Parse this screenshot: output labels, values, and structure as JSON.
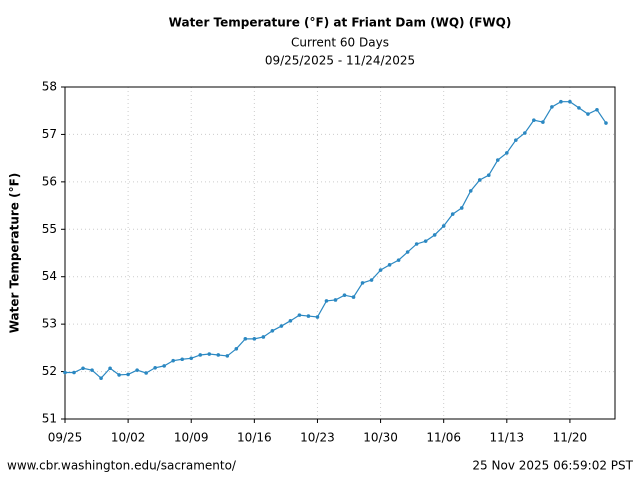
{
  "chart_data": {
    "type": "line",
    "title": "Water Temperature (°F) at Friant Dam (WQ) (FWQ)",
    "subtitle": "Current 60 Days",
    "date_range": "09/25/2025 - 11/24/2025",
    "y_label": "Water Temperature (°F)",
    "source": "www.cbr.washington.edu/sacramento/",
    "timestamp": "25 Nov 2025 06:59:02 PST",
    "x": [
      0,
      1,
      2,
      3,
      4,
      5,
      6,
      7,
      8,
      9,
      10,
      11,
      12,
      13,
      14,
      15,
      16,
      17,
      18,
      19,
      20,
      21,
      22,
      23,
      24,
      25,
      26,
      27,
      28,
      29,
      30,
      31,
      32,
      33,
      34,
      35,
      36,
      37,
      38,
      39,
      40,
      41,
      42,
      43,
      44,
      45,
      46,
      47,
      48,
      49,
      50,
      51,
      52,
      53,
      54,
      55,
      56,
      57,
      58,
      59,
      60
    ],
    "series": [
      {
        "name": "Water Temperature",
        "color": "#2b88c2",
        "values": [
          51.98,
          51.98,
          52.07,
          52.03,
          51.86,
          52.07,
          51.93,
          51.94,
          52.03,
          51.97,
          52.08,
          52.12,
          52.23,
          52.26,
          52.28,
          52.35,
          52.37,
          52.35,
          52.33,
          52.48,
          52.69,
          52.69,
          52.73,
          52.86,
          52.96,
          53.07,
          53.19,
          53.17,
          53.15,
          53.49,
          53.51,
          53.61,
          53.57,
          53.87,
          53.93,
          54.14,
          54.25,
          54.35,
          54.52,
          54.69,
          54.75,
          54.88,
          55.07,
          55.32,
          55.45,
          55.81,
          56.04,
          56.14,
          56.46,
          56.61,
          56.88,
          57.03,
          57.3,
          57.26,
          57.58,
          57.69,
          57.69,
          57.56,
          57.43,
          57.52,
          57.24
        ]
      }
    ],
    "xlim": [
      0,
      61
    ],
    "xticks": [
      {
        "value": 0,
        "label": "09/25"
      },
      {
        "value": 7,
        "label": "10/02"
      },
      {
        "value": 14,
        "label": "10/09"
      },
      {
        "value": 21,
        "label": "10/16"
      },
      {
        "value": 28,
        "label": "10/23"
      },
      {
        "value": 35,
        "label": "10/30"
      },
      {
        "value": 42,
        "label": "11/06"
      },
      {
        "value": 49,
        "label": "11/13"
      },
      {
        "value": 56,
        "label": "11/20"
      }
    ],
    "ylim": [
      51,
      58
    ],
    "yticks": [
      51,
      52,
      53,
      54,
      55,
      56,
      57,
      58
    ],
    "grid": true
  }
}
